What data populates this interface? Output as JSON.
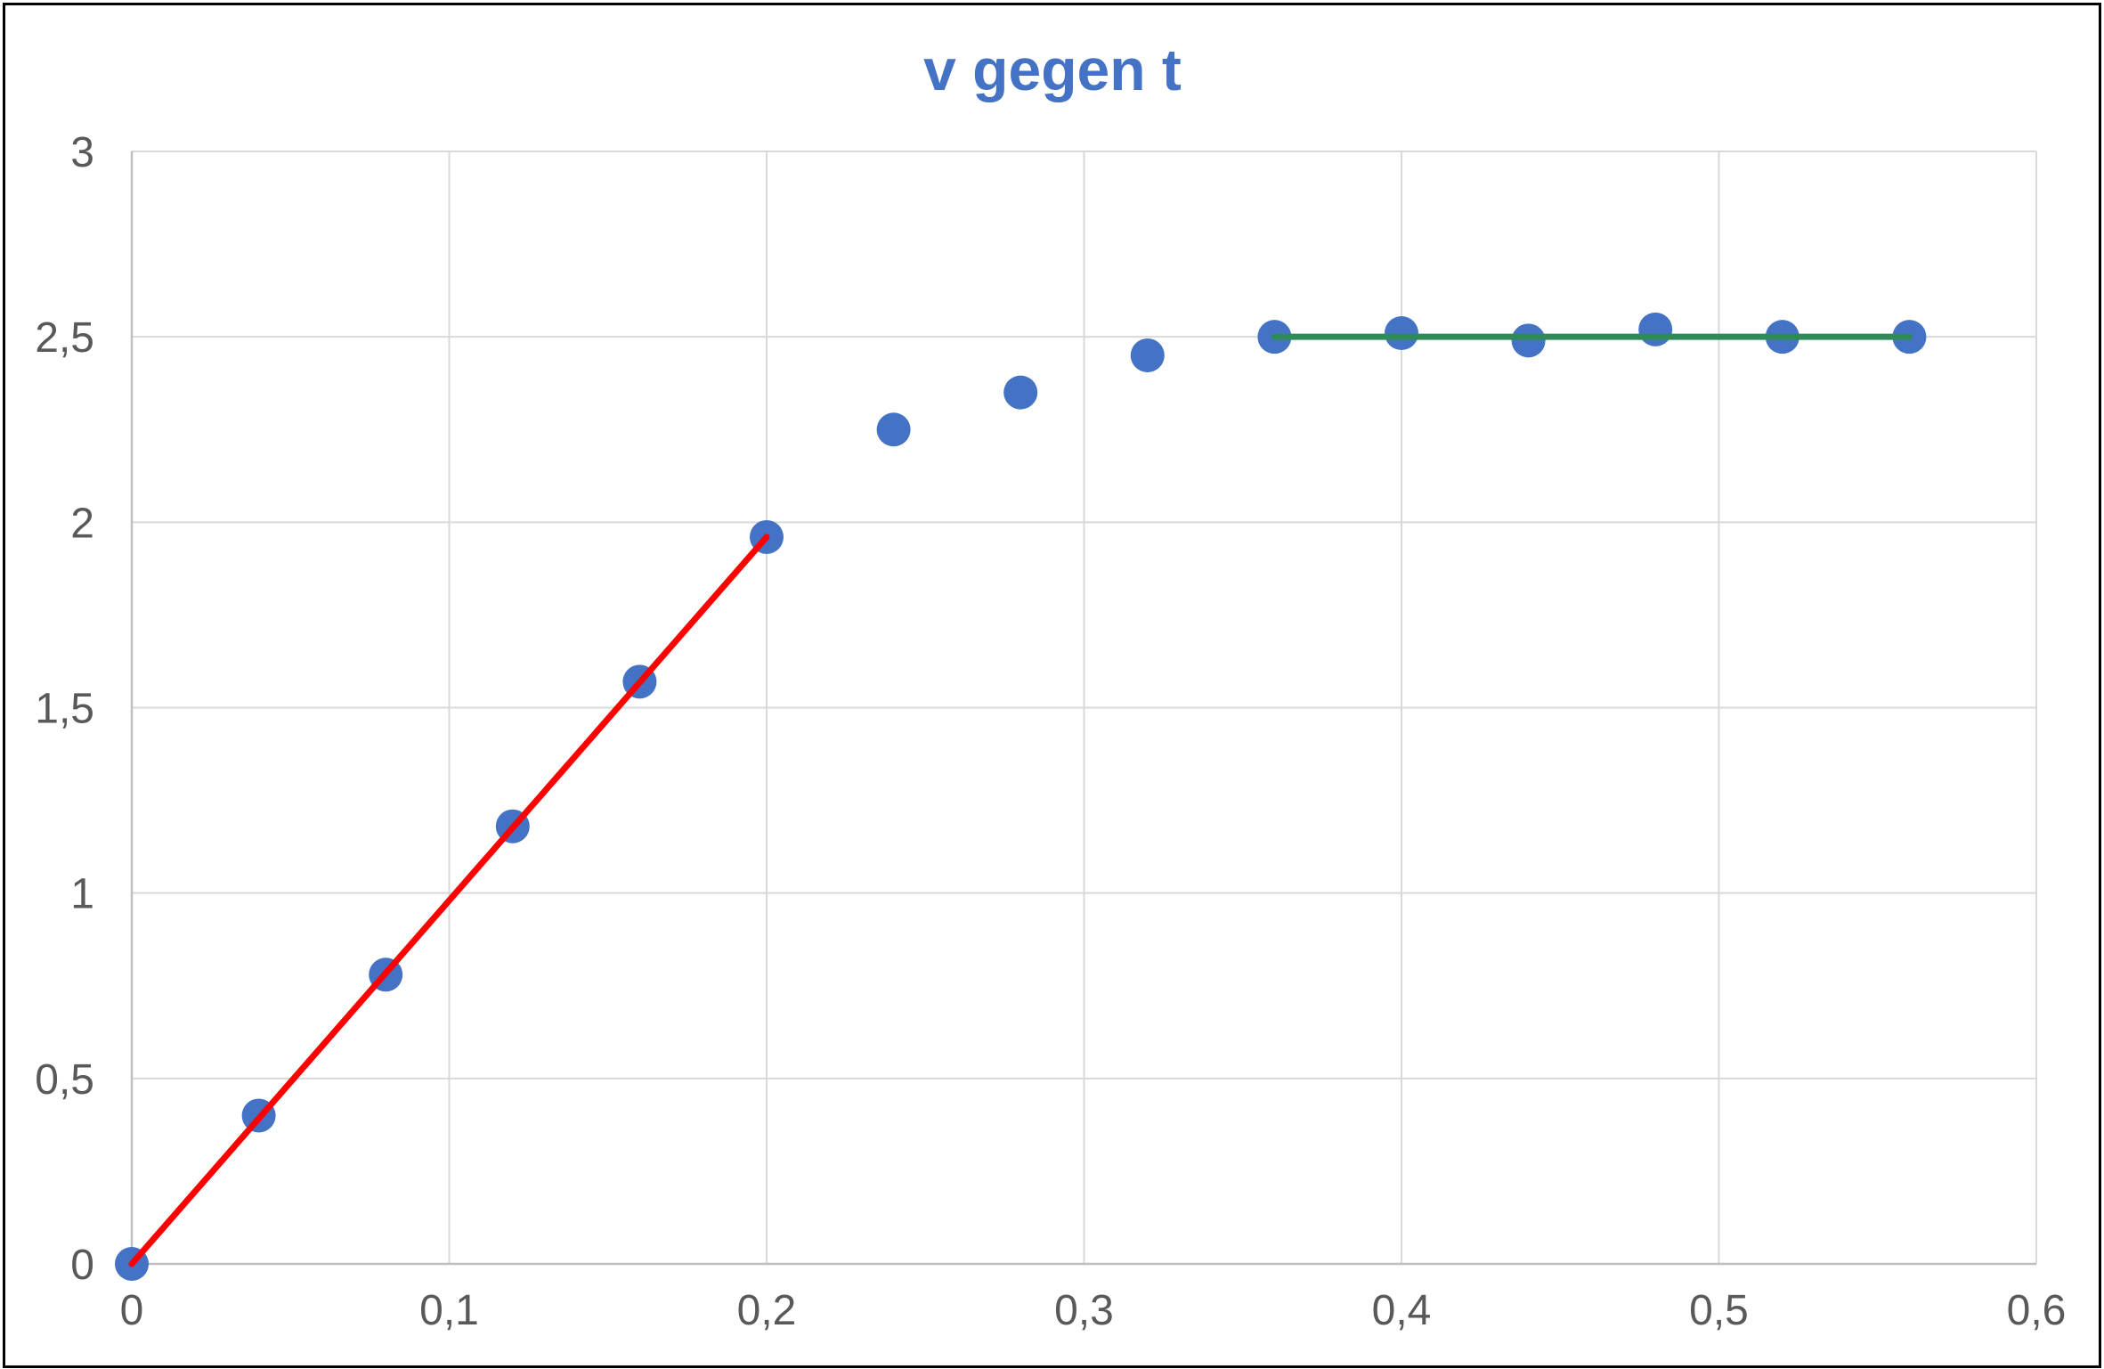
{
  "chart_data": {
    "type": "scatter",
    "title": "v gegen t",
    "xlabel": "",
    "ylabel": "",
    "xlim": [
      0,
      0.6
    ],
    "ylim": [
      0,
      3
    ],
    "grid": true,
    "legend": "none",
    "x_ticks": [
      {
        "value": 0,
        "label": "0"
      },
      {
        "value": 0.1,
        "label": "0,1"
      },
      {
        "value": 0.2,
        "label": "0,2"
      },
      {
        "value": 0.3,
        "label": "0,3"
      },
      {
        "value": 0.4,
        "label": "0,4"
      },
      {
        "value": 0.5,
        "label": "0,5"
      },
      {
        "value": 0.6,
        "label": "0,6"
      }
    ],
    "y_ticks": [
      {
        "value": 0,
        "label": "0"
      },
      {
        "value": 0.5,
        "label": "0,5"
      },
      {
        "value": 1,
        "label": "1"
      },
      {
        "value": 1.5,
        "label": "1,5"
      },
      {
        "value": 2,
        "label": "2"
      },
      {
        "value": 2.5,
        "label": "2,5"
      },
      {
        "value": 3,
        "label": "3"
      }
    ],
    "series": [
      {
        "color": "#4472c4",
        "points": [
          {
            "x": 0,
            "y": 0
          },
          {
            "x": 0.04,
            "y": 0.4
          },
          {
            "x": 0.08,
            "y": 0.78
          },
          {
            "x": 0.12,
            "y": 1.18
          },
          {
            "x": 0.16,
            "y": 1.57
          },
          {
            "x": 0.2,
            "y": 1.96
          },
          {
            "x": 0.24,
            "y": 2.25
          },
          {
            "x": 0.28,
            "y": 2.35
          },
          {
            "x": 0.32,
            "y": 2.45
          },
          {
            "x": 0.36,
            "y": 2.5
          },
          {
            "x": 0.4,
            "y": 2.51
          },
          {
            "x": 0.44,
            "y": 2.49
          },
          {
            "x": 0.48,
            "y": 2.52
          },
          {
            "x": 0.52,
            "y": 2.5
          },
          {
            "x": 0.56,
            "y": 2.5
          }
        ]
      }
    ],
    "lines": [
      {
        "color": "#ff0000",
        "from": {
          "x": 0,
          "y": 0
        },
        "to": {
          "x": 0.2,
          "y": 1.96
        }
      },
      {
        "color": "#2e8b57",
        "from": {
          "x": 0.36,
          "y": 2.5
        },
        "to": {
          "x": 0.56,
          "y": 2.5
        }
      }
    ]
  }
}
